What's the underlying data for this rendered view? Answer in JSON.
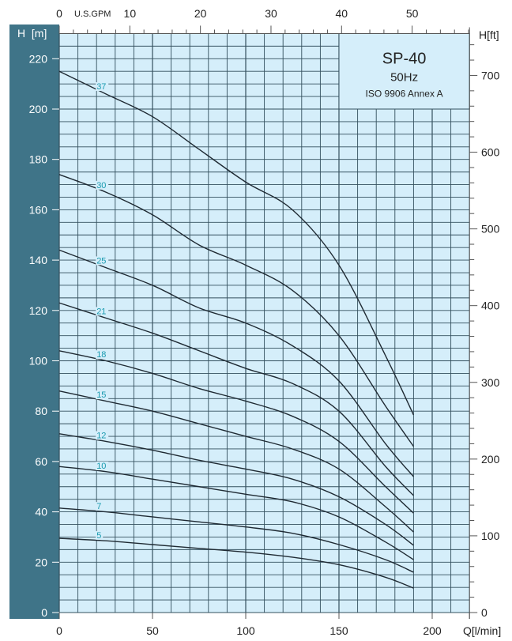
{
  "chart_data": {
    "type": "line",
    "title": "SP-40",
    "subtitle": "50Hz",
    "note": "ISO 9906 Annex A",
    "xlabel": "Q[l/min]",
    "ylabel": "H  [m]",
    "y2label": "H[ft]",
    "x2label": "U.S.GPM",
    "xlim": [
      0,
      220
    ],
    "ylim": [
      0,
      230
    ],
    "grid": true,
    "x_ticks": [
      "0",
      "50",
      "100",
      "150",
      "200"
    ],
    "y_ticks": [
      "0",
      "20",
      "40",
      "60",
      "80",
      "100",
      "120",
      "140",
      "160",
      "180",
      "200",
      "220"
    ],
    "y2_ticks": [
      "0",
      "100",
      "200",
      "300",
      "400",
      "500",
      "600",
      "700"
    ],
    "x2_ticks": [
      "0",
      "10",
      "20",
      "30",
      "40",
      "50"
    ],
    "x": [
      0,
      25,
      50,
      75,
      100,
      125,
      150,
      175,
      190
    ],
    "series": [
      {
        "name": "37",
        "values": [
          215,
          206,
          197,
          184,
          171,
          160,
          138,
          102,
          78.5
        ]
      },
      {
        "name": "30",
        "values": [
          174,
          167,
          158,
          146,
          138,
          128,
          110,
          82,
          66
        ]
      },
      {
        "name": "25",
        "values": [
          144,
          137,
          130,
          121,
          115,
          106,
          92,
          67,
          54
        ]
      },
      {
        "name": "21",
        "values": [
          123,
          117,
          111,
          104,
          97,
          91,
          80,
          58,
          46.5
        ]
      },
      {
        "name": "18",
        "values": [
          104,
          100,
          95,
          89,
          84,
          78,
          68,
          50,
          39.5
        ]
      },
      {
        "name": "15",
        "values": [
          88,
          84,
          80,
          75,
          70,
          65,
          57,
          42,
          32
        ]
      },
      {
        "name": "12",
        "values": [
          71,
          68,
          64.5,
          60.5,
          57,
          53,
          46,
          35,
          26.7
        ]
      },
      {
        "name": "10",
        "values": [
          58,
          56,
          53,
          50,
          47,
          44,
          38,
          28,
          21
        ]
      },
      {
        "name": "7",
        "values": [
          41.5,
          40,
          38,
          36,
          34,
          31.5,
          27,
          21,
          16
        ]
      },
      {
        "name": "5",
        "values": [
          29.5,
          28.5,
          27,
          25.5,
          24,
          22,
          19,
          14,
          9.7
        ]
      }
    ],
    "colors": {
      "plot_bg": "#d5eefa",
      "grid": "#34505e",
      "axis_bar": "#3f7488",
      "curve": "#1f2a33",
      "curve_label": "#1a9bb0"
    }
  }
}
